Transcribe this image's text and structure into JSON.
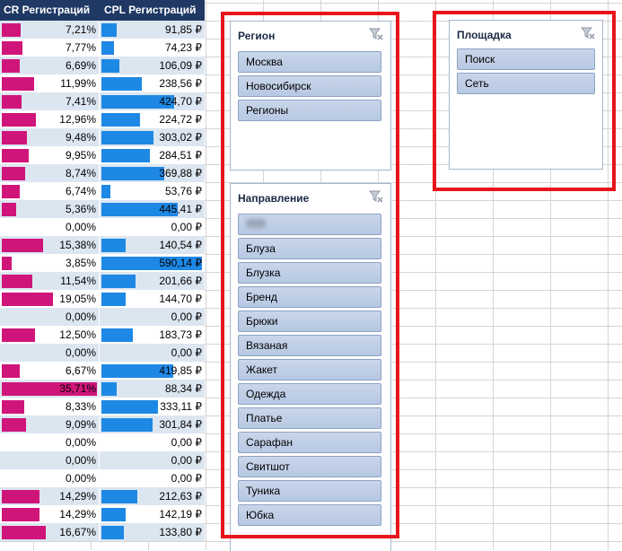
{
  "table": {
    "col_cr": "CR Регистраций",
    "col_cpl": "CPL Регистраций",
    "rows": [
      {
        "cr": "7,21%",
        "cr_v": 7.21,
        "cpl": "91,85 ₽",
        "cpl_v": 91.85
      },
      {
        "cr": "7,77%",
        "cr_v": 7.77,
        "cpl": "74,23 ₽",
        "cpl_v": 74.23
      },
      {
        "cr": "6,69%",
        "cr_v": 6.69,
        "cpl": "106,09 ₽",
        "cpl_v": 106.09
      },
      {
        "cr": "11,99%",
        "cr_v": 11.99,
        "cpl": "238,56 ₽",
        "cpl_v": 238.56
      },
      {
        "cr": "7,41%",
        "cr_v": 7.41,
        "cpl": "424,70 ₽",
        "cpl_v": 424.7
      },
      {
        "cr": "12,96%",
        "cr_v": 12.96,
        "cpl": "224,72 ₽",
        "cpl_v": 224.72
      },
      {
        "cr": "9,48%",
        "cr_v": 9.48,
        "cpl": "303,02 ₽",
        "cpl_v": 303.02
      },
      {
        "cr": "9,95%",
        "cr_v": 9.95,
        "cpl": "284,51 ₽",
        "cpl_v": 284.51
      },
      {
        "cr": "8,74%",
        "cr_v": 8.74,
        "cpl": "369,88 ₽",
        "cpl_v": 369.88
      },
      {
        "cr": "6,74%",
        "cr_v": 6.74,
        "cpl": "53,76 ₽",
        "cpl_v": 53.76
      },
      {
        "cr": "5,36%",
        "cr_v": 5.36,
        "cpl": "445,41 ₽",
        "cpl_v": 445.41
      },
      {
        "cr": "0,00%",
        "cr_v": 0,
        "cpl": "0,00 ₽",
        "cpl_v": 0
      },
      {
        "cr": "15,38%",
        "cr_v": 15.38,
        "cpl": "140,54 ₽",
        "cpl_v": 140.54
      },
      {
        "cr": "3,85%",
        "cr_v": 3.85,
        "cpl": "590,14 ₽",
        "cpl_v": 590.14
      },
      {
        "cr": "11,54%",
        "cr_v": 11.54,
        "cpl": "201,66 ₽",
        "cpl_v": 201.66
      },
      {
        "cr": "19,05%",
        "cr_v": 19.05,
        "cpl": "144,70 ₽",
        "cpl_v": 144.7
      },
      {
        "cr": "0,00%",
        "cr_v": 0,
        "cpl": "0,00 ₽",
        "cpl_v": 0
      },
      {
        "cr": "12,50%",
        "cr_v": 12.5,
        "cpl": "183,73 ₽",
        "cpl_v": 183.73
      },
      {
        "cr": "0,00%",
        "cr_v": 0,
        "cpl": "0,00 ₽",
        "cpl_v": 0
      },
      {
        "cr": "6,67%",
        "cr_v": 6.67,
        "cpl": "419,85 ₽",
        "cpl_v": 419.85
      },
      {
        "cr": "35,71%",
        "cr_v": 35.71,
        "cpl": "88,34 ₽",
        "cpl_v": 88.34
      },
      {
        "cr": "8,33%",
        "cr_v": 8.33,
        "cpl": "333,11 ₽",
        "cpl_v": 333.11
      },
      {
        "cr": "9,09%",
        "cr_v": 9.09,
        "cpl": "301,84 ₽",
        "cpl_v": 301.84
      },
      {
        "cr": "0,00%",
        "cr_v": 0,
        "cpl": "0,00 ₽",
        "cpl_v": 0
      },
      {
        "cr": "0,00%",
        "cr_v": 0,
        "cpl": "0,00 ₽",
        "cpl_v": 0
      },
      {
        "cr": "0,00%",
        "cr_v": 0,
        "cpl": "0,00 ₽",
        "cpl_v": 0
      },
      {
        "cr": "14,29%",
        "cr_v": 14.29,
        "cpl": "212,63 ₽",
        "cpl_v": 212.63
      },
      {
        "cr": "14,29%",
        "cr_v": 14.29,
        "cpl": "142,19 ₽",
        "cpl_v": 142.19
      },
      {
        "cr": "16,67%",
        "cr_v": 16.67,
        "cpl": "133,80 ₽",
        "cpl_v": 133.8
      }
    ]
  },
  "slicers": {
    "region": {
      "title": "Регион",
      "items": [
        "Москва",
        "Новосибирск",
        "Регионы"
      ]
    },
    "direction": {
      "title": "Направление",
      "items": [
        "",
        "Блуза",
        "Блузка",
        "Бренд",
        "Брюки",
        "Вязаная",
        "Жакет",
        "Одежда",
        "Платье",
        "Сарафан",
        "Свитшот",
        "Туника",
        "Юбка"
      ]
    },
    "platform": {
      "title": "Площадка",
      "items": [
        "Поиск",
        "Сеть"
      ]
    }
  },
  "icons": {
    "clear_filter": "clear-filter-icon"
  },
  "colors": {
    "header_bg": "#1f3864",
    "cr_bar": "#d0157a",
    "cpl_bar": "#1e88e5",
    "highlight": "#e8141a",
    "slicer_item": "#b7c8e3"
  }
}
